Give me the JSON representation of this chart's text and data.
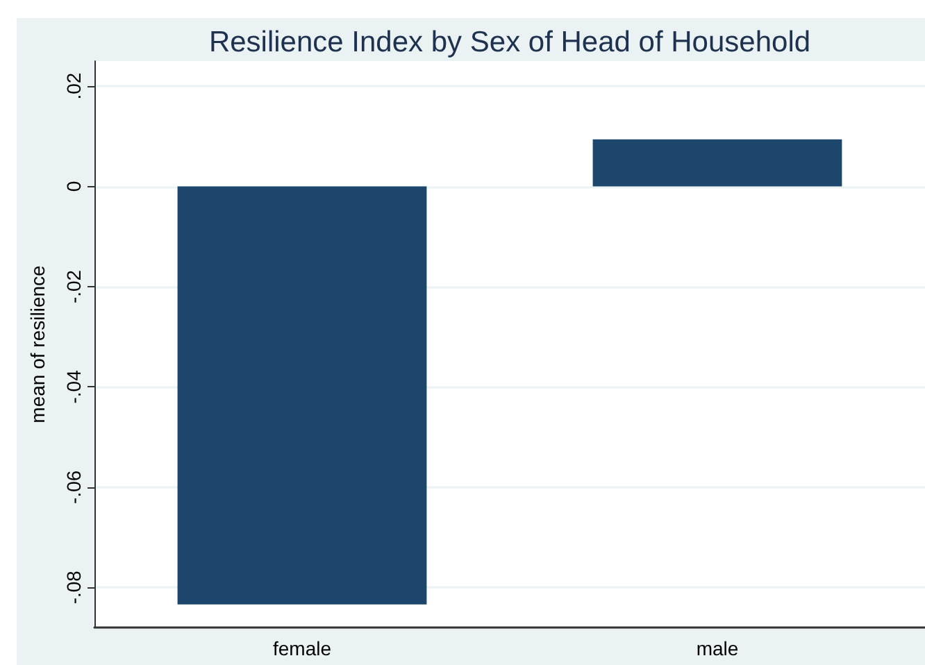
{
  "chart_data": {
    "type": "bar",
    "title": "Resilience Index by Sex of Head of Household",
    "ylabel": "mean of resilience",
    "categories": [
      "female",
      "male"
    ],
    "values": [
      -0.0834,
      0.0094
    ],
    "color": "#1c466c",
    "ylim": [
      -0.088,
      0.025
    ],
    "yticks": [
      {
        "value": 0.02,
        "label": ".02"
      },
      0,
      {
        "value": -0.02,
        "label": "-.02"
      },
      {
        "value": -0.04,
        "label": "-.04"
      },
      {
        "value": -0.06,
        "label": "-.06"
      },
      {
        "value": -0.08,
        "label": "-.08"
      }
    ],
    "grid": "y"
  }
}
